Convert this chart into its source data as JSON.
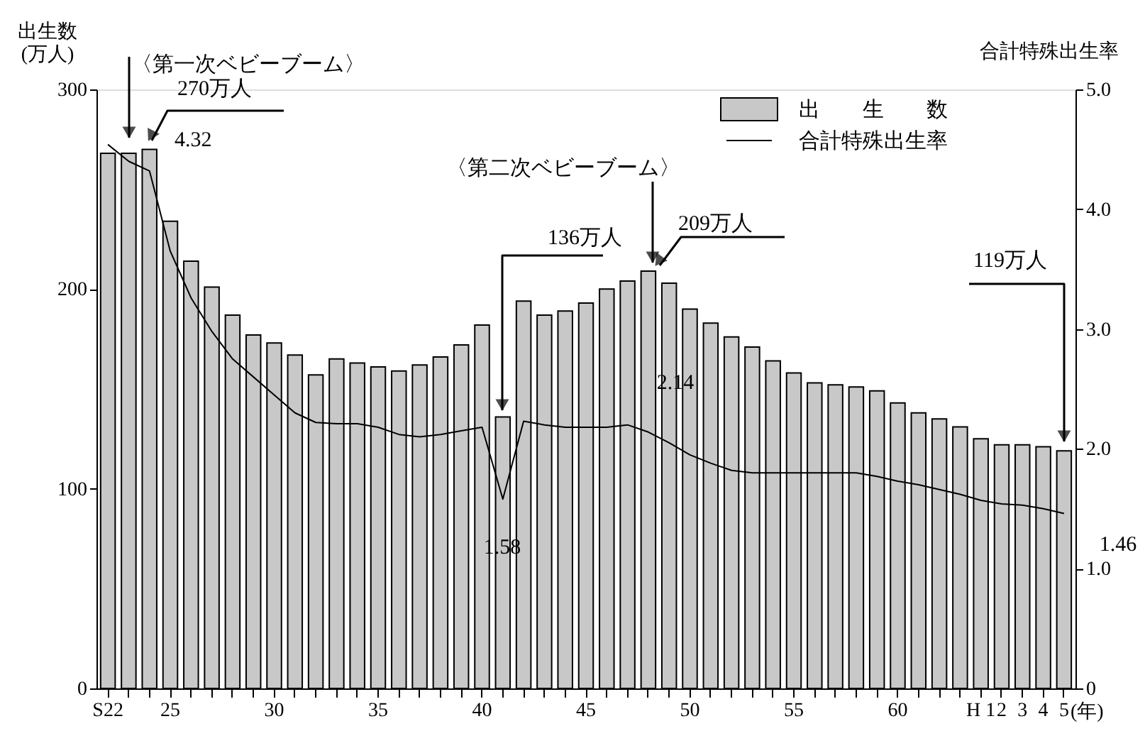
{
  "chart_data": {
    "type": "bar",
    "categories": [
      "S22",
      null,
      null,
      "25",
      null,
      null,
      null,
      null,
      "30",
      null,
      null,
      null,
      null,
      "35",
      null,
      null,
      null,
      null,
      "40",
      null,
      null,
      null,
      null,
      "45",
      null,
      null,
      null,
      null,
      "50",
      null,
      null,
      null,
      null,
      "55",
      null,
      null,
      null,
      null,
      "60",
      null,
      null,
      null,
      "H 1",
      "2",
      "3",
      "4",
      "5"
    ],
    "xlabel": "(年)",
    "ylabel": "出生数\n(万人)",
    "y2label": "合計特殊出生率",
    "ylim": [
      0,
      300
    ],
    "yticks": [
      0,
      100,
      200,
      300
    ],
    "y2lim": [
      0,
      5
    ],
    "y2ticks": [
      0,
      {
        "value": 1,
        "label": "1.0"
      },
      {
        "value": 2,
        "label": "2.0"
      },
      {
        "value": 3,
        "label": "3.0"
      },
      {
        "value": 4,
        "label": "4.0"
      },
      {
        "value": 5,
        "label": "5.0"
      }
    ],
    "series": [
      {
        "name": "出　　生　　数",
        "color": "#c8c8c8",
        "values": [
          268,
          268,
          270,
          234,
          214,
          201,
          187,
          177,
          173,
          167,
          157,
          165,
          163,
          161,
          159,
          162,
          166,
          172,
          182,
          136,
          194,
          187,
          189,
          193,
          200,
          204,
          209,
          203,
          190,
          183,
          176,
          171,
          164,
          158,
          153,
          152,
          151,
          149,
          143,
          138,
          135,
          131,
          125,
          122,
          122,
          121,
          119
        ]
      },
      {
        "name": "合計特殊出生率",
        "type": "line",
        "axis": "y2",
        "color": "#000000",
        "values": [
          4.54,
          4.4,
          4.32,
          3.65,
          3.26,
          2.98,
          2.75,
          2.6,
          2.45,
          2.3,
          2.22,
          2.21,
          2.21,
          2.18,
          2.12,
          2.1,
          2.12,
          2.15,
          2.18,
          1.58,
          2.23,
          2.2,
          2.18,
          2.18,
          2.18,
          2.2,
          2.14,
          2.05,
          1.95,
          1.88,
          1.82,
          1.8,
          1.8,
          1.8,
          1.8,
          1.8,
          1.8,
          1.77,
          1.73,
          1.7,
          1.66,
          1.62,
          1.57,
          1.54,
          1.53,
          1.5,
          1.46
        ]
      }
    ],
    "legend": "top right",
    "grid": false,
    "annotations": [
      "〈第一次ベビーブーム〉",
      "270万人",
      "4.32",
      "〈第二次ベビーブーム〉",
      "136万人",
      "1.58",
      "209万人",
      "2.14",
      "119万人",
      "1.46"
    ]
  }
}
